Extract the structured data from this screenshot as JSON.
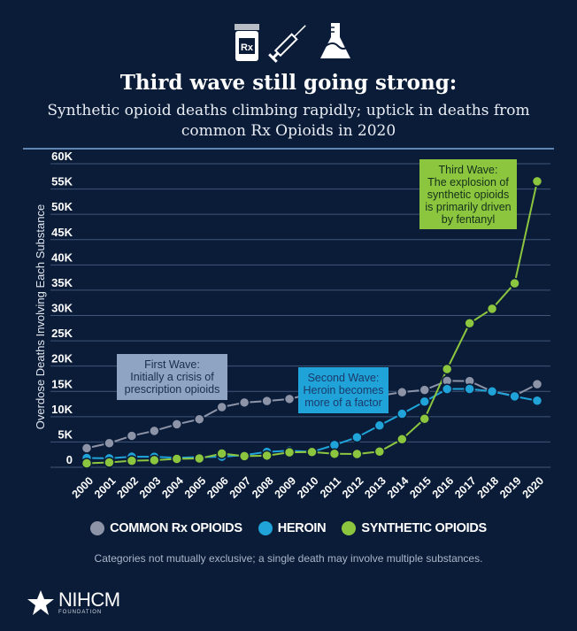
{
  "header": {
    "icons": [
      "rx-pill-bottle-icon",
      "syringe-icon",
      "lab-flask-icon"
    ],
    "icon_rx_text": "Rx",
    "title": "Third wave still going strong:",
    "subtitle": "Synthetic opioid deaths climbing rapidly; uptick in deaths from common Rx Opioids in 2020"
  },
  "chart_data": {
    "type": "line",
    "title": "Third wave still going strong:",
    "ylabel": "Overdose Deaths Involving Each Substance",
    "xlabel": "",
    "x": [
      2000,
      2001,
      2002,
      2003,
      2004,
      2005,
      2006,
      2007,
      2008,
      2009,
      2010,
      2011,
      2012,
      2013,
      2014,
      2015,
      2016,
      2017,
      2018,
      2019,
      2020
    ],
    "ylim": [
      0,
      60000
    ],
    "yticks": [
      0,
      5000,
      10000,
      15000,
      20000,
      25000,
      30000,
      35000,
      40000,
      45000,
      50000,
      55000,
      60000
    ],
    "ytick_labels": [
      "0",
      "5K",
      "10K",
      "15K",
      "20K",
      "25K",
      "30K",
      "35K",
      "40K",
      "45K",
      "50K",
      "55K",
      "60K"
    ],
    "grid": true,
    "legend_position": "bottom",
    "series": [
      {
        "name": "COMMON Rx OPIOIDS",
        "color": "#8d94a8",
        "values": [
          3785,
          4770,
          6220,
          7200,
          8500,
          9500,
          11900,
          12800,
          13100,
          13500,
          14583,
          15140,
          14240,
          14145,
          14838,
          15281,
          17087,
          17029,
          14975,
          14139,
          16416
        ]
      },
      {
        "name": "HEROIN",
        "color": "#1fa3d9",
        "values": [
          1842,
          1779,
          2089,
          2080,
          1878,
          2009,
          2088,
          2399,
          3041,
          3278,
          3036,
          4397,
          5925,
          8257,
          10574,
          12989,
          15469,
          15482,
          14996,
          14019,
          13165
        ]
      },
      {
        "name": "SYNTHETIC OPIOIDS",
        "color": "#8cc63f",
        "values": [
          782,
          957,
          1295,
          1400,
          1664,
          1742,
          2707,
          2213,
          2306,
          2946,
          3007,
          2666,
          2628,
          3105,
          5544,
          9580,
          19413,
          28466,
          31335,
          36359,
          56516
        ]
      }
    ],
    "annotations": [
      {
        "lines": [
          "First Wave:",
          "Initially a crisis of",
          "prescription opioids"
        ],
        "color": "#8ea4c2"
      },
      {
        "lines": [
          "Second Wave:",
          "Heroin becomes",
          "more of a factor"
        ],
        "color": "#1fa3d9"
      },
      {
        "lines": [
          "Third Wave:",
          "The explosion of",
          "synthetic opioids",
          "is primarily driven",
          "by fentanyl"
        ],
        "color": "#8cc63f"
      }
    ]
  },
  "footer": {
    "note": "Categories not mutually exclusive; a single death may involve multiple substances.",
    "logo_name": "NIHCM",
    "logo_sub": "FOUNDATION"
  },
  "colors": {
    "background": "#0b1c38",
    "separator": "#5d86b5"
  }
}
